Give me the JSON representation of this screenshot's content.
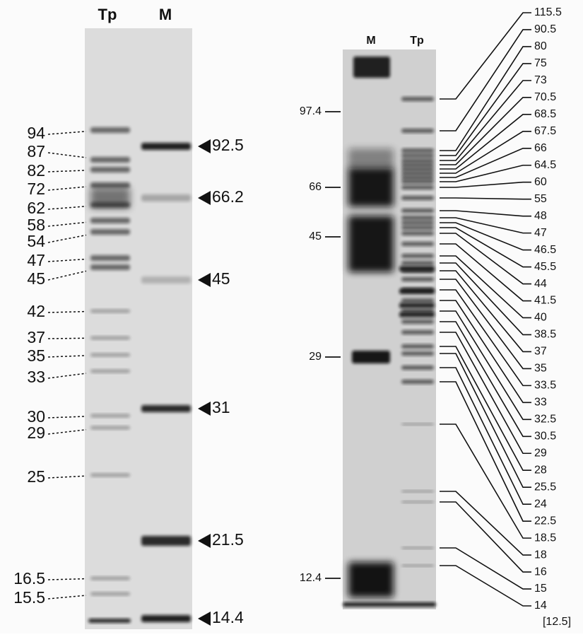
{
  "left_gel": {
    "lanes": [
      "Tp",
      "M"
    ],
    "tp_labels": [
      "94",
      "87",
      "82",
      "72",
      "62",
      "58",
      "54",
      "47",
      "45",
      "42",
      "37",
      "35",
      "33",
      "30",
      "29",
      "25",
      "16.5",
      "15.5"
    ],
    "marker_labels": [
      "92.5",
      "66.2",
      "45",
      "31",
      "21.5",
      "14.4"
    ]
  },
  "right_gel": {
    "lanes": [
      "M",
      "Tp"
    ],
    "marker_labels": [
      "97.4",
      "66",
      "45",
      "29",
      "12.4"
    ],
    "tp_labels": [
      "115.5",
      "90.5",
      "80",
      "75",
      "73",
      "70.5",
      "68.5",
      "67.5",
      "66",
      "64.5",
      "60",
      "55",
      "48",
      "47",
      "46.5",
      "45.5",
      "44",
      "41.5",
      "40",
      "38.5",
      "37",
      "35",
      "33.5",
      "33",
      "32.5",
      "30.5",
      "29",
      "28",
      "25.5",
      "24",
      "22.5",
      "18.5",
      "18",
      "16",
      "15",
      "14"
    ],
    "footnote": "[12.5]"
  }
}
